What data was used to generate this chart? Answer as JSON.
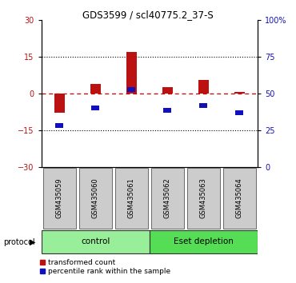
{
  "title": "GDS3599 / scl40775.2_37-S",
  "samples": [
    "GSM435059",
    "GSM435060",
    "GSM435061",
    "GSM435062",
    "GSM435063",
    "GSM435064"
  ],
  "transformed_count": [
    -8.0,
    4.0,
    17.0,
    2.5,
    5.5,
    0.5
  ],
  "percentile_rank_left": [
    -13.0,
    -6.0,
    1.5,
    -7.0,
    -5.0,
    -8.0
  ],
  "ylim_left": [
    -30,
    30
  ],
  "ylim_right": [
    0,
    100
  ],
  "yticks_left": [
    -30,
    -15,
    0,
    15,
    30
  ],
  "yticks_right": [
    0,
    25,
    50,
    75,
    100
  ],
  "bar_color_red": "#bb1111",
  "bar_color_blue": "#1111bb",
  "dashed_line_color": "#cc0000",
  "group_colors_light": "#aaeea a",
  "group_color_control": "#99ee99",
  "group_color_eset": "#55dd55",
  "sample_bg_color": "#cccccc",
  "bg_color": "#ffffff",
  "legend_red": "transformed count",
  "legend_blue": "percentile rank within the sample",
  "bar_width": 0.3,
  "blue_sq_size": 0.22
}
